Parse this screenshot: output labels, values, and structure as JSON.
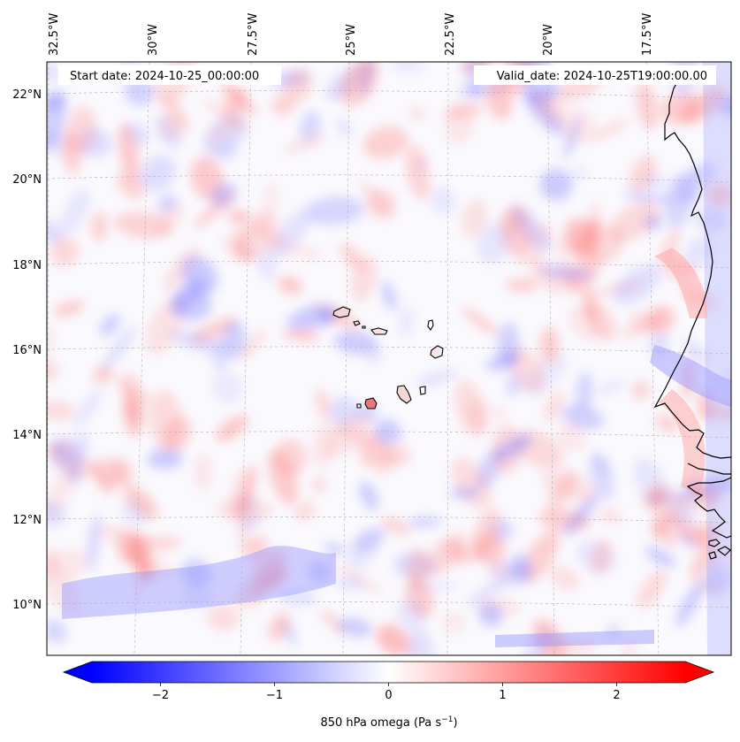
{
  "map": {
    "start_label": "Start date: 2024-10-25_00:00:00",
    "valid_label": "Valid_date: 2024-10-25T19:00:00.00",
    "lon_ticks": [
      "32.5°W",
      "30°W",
      "27.5°W",
      "25°W",
      "22.5°W",
      "20°W",
      "17.5°W"
    ],
    "lat_ticks": [
      "22°N",
      "20°N",
      "18°N",
      "16°N",
      "14°N",
      "12°N",
      "10°N"
    ],
    "variable": "850 hPa omega",
    "units": "Pa s",
    "units_exponent": "−1",
    "field_colormap": "bwr",
    "coastline_color": "#000000",
    "gridline_color": "#b0b0b0"
  },
  "colorbar": {
    "min": -2.6,
    "max": 2.6,
    "extend": "both",
    "ticks": [
      -2,
      -1,
      0,
      1,
      2
    ],
    "tick_labels": [
      "−2",
      "−1",
      "0",
      "1",
      "2"
    ],
    "colors": {
      "low": "#0000ff",
      "mid": "#ffffff",
      "high": "#ff0000"
    }
  }
}
